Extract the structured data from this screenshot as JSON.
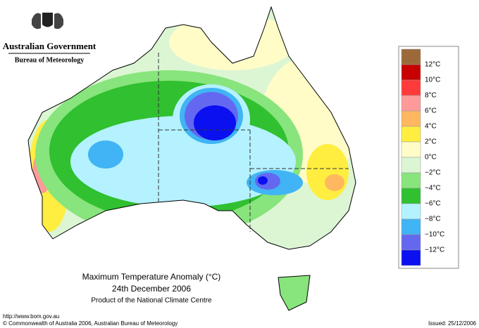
{
  "header": {
    "agency": "Australian Government",
    "bureau": "Bureau of Meteorology"
  },
  "title": {
    "line1": "Maximum Temperature Anomaly (°C)",
    "line2": "24th December 2006",
    "line3": "Product of the National Climate Centre"
  },
  "legend": {
    "colors": [
      "#9c6a3a",
      "#c80000",
      "#ff3a3a",
      "#ff9a9a",
      "#ffb860",
      "#ffee40",
      "#fffcc8",
      "#dcf6d4",
      "#88e47c",
      "#30c030",
      "#b4f2ff",
      "#40b4f4",
      "#6468f0",
      "#0a10f0"
    ],
    "labels": [
      "12°C",
      "10°C",
      "8°C",
      "6°C",
      "4°C",
      "2°C",
      "0°C",
      "−2°C",
      "−4°C",
      "−6°C",
      "−8°C",
      "−10°C",
      "−12°C"
    ]
  },
  "footer": {
    "url": "http://www.bom.gov.au",
    "copyright": "© Commonwealth of Australia 2006, Australian Bureau of Meteorology",
    "issued": "Issued: 25/12/2006"
  }
}
